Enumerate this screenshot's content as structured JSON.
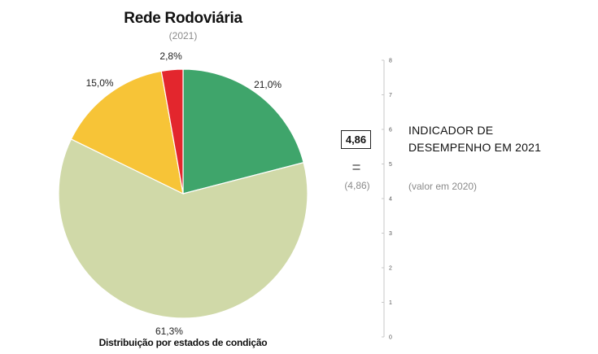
{
  "chart_data": {
    "type": "pie",
    "title": "Rede Rodoviária",
    "subtitle": "(2021)",
    "caption": "Distribuição por estados de condição",
    "slices": [
      {
        "label": "21,0%",
        "value": 21.0,
        "color": "#3fa56b"
      },
      {
        "label": "61,3%",
        "value": 61.3,
        "color": "#d0d9a8"
      },
      {
        "label": "15,0%",
        "value": 15.0,
        "color": "#f7c437"
      },
      {
        "label": "2,8%",
        "value": 2.8,
        "color": "#e3262d"
      }
    ]
  },
  "indicator": {
    "value": "4,86",
    "equals": "=",
    "previous_value": "(4,86)",
    "title_line1": "INDICADOR DE",
    "title_line2": "DESEMPENHO EM 2021",
    "note": "(valor em 2020)",
    "scale_ticks": [
      "0",
      "1",
      "2",
      "3",
      "4",
      "5",
      "6",
      "7",
      "8"
    ],
    "scale_range": [
      0,
      8
    ]
  }
}
